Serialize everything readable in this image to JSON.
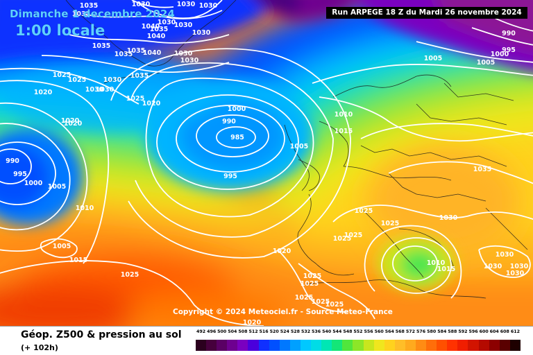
{
  "header": {
    "date_label": "Dimanche 1 decembre 2024",
    "time_label": "1:00 locale",
    "run_label": "Run ARPEGE 18 Z du Mardi 26 novembre 2024"
  },
  "map": {
    "copyright": "Copyright © 2024 Meteociel.fr - Source Meteo-France",
    "isobar_labels": [
      {
        "text": "1035",
        "pos": [
          128,
          3
        ]
      },
      {
        "text": "1030",
        "pos": [
          203,
          1
        ]
      },
      {
        "text": "1030",
        "pos": [
          268,
          1
        ]
      },
      {
        "text": "1030",
        "pos": [
          300,
          3
        ]
      },
      {
        "text": "1035",
        "pos": [
          117,
          15
        ]
      },
      {
        "text": "1030",
        "pos": [
          240,
          27
        ]
      },
      {
        "text": "1030",
        "pos": [
          264,
          31
        ]
      },
      {
        "text": "1040",
        "pos": [
          217,
          33
        ]
      },
      {
        "text": "1035",
        "pos": [
          229,
          37
        ]
      },
      {
        "text": "1030",
        "pos": [
          290,
          42
        ]
      },
      {
        "text": "1040",
        "pos": [
          225,
          47
        ]
      },
      {
        "text": "1035",
        "pos": [
          146,
          61
        ]
      },
      {
        "text": "1035",
        "pos": [
          196,
          68
        ]
      },
      {
        "text": "1040",
        "pos": [
          219,
          71
        ]
      },
      {
        "text": "1035",
        "pos": [
          178,
          73
        ]
      },
      {
        "text": "1030",
        "pos": [
          264,
          72
        ]
      },
      {
        "text": "1030",
        "pos": [
          273,
          82
        ]
      },
      {
        "text": "1025",
        "pos": [
          89,
          103
        ]
      },
      {
        "text": "1025",
        "pos": [
          111,
          110
        ]
      },
      {
        "text": "1030",
        "pos": [
          162,
          110
        ]
      },
      {
        "text": "1035",
        "pos": [
          201,
          104
        ]
      },
      {
        "text": "1030",
        "pos": [
          136,
          124
        ]
      },
      {
        "text": "1030",
        "pos": [
          151,
          124
        ]
      },
      {
        "text": "1020",
        "pos": [
          62,
          128
        ]
      },
      {
        "text": "1025",
        "pos": [
          195,
          137
        ]
      },
      {
        "text": "1020",
        "pos": [
          218,
          144
        ]
      },
      {
        "text": "1000",
        "pos": [
          341,
          152
        ]
      },
      {
        "text": "990",
        "pos": [
          330,
          170
        ]
      },
      {
        "text": "985",
        "pos": [
          342,
          193
        ]
      },
      {
        "text": "1005",
        "pos": [
          431,
          206
        ]
      },
      {
        "text": "1020",
        "pos": [
          101,
          169
        ]
      },
      {
        "text": "1020",
        "pos": [
          105,
          173
        ]
      },
      {
        "text": "1010",
        "pos": [
          495,
          160
        ]
      },
      {
        "text": "1015",
        "pos": [
          495,
          184
        ]
      },
      {
        "text": "990",
        "pos": [
          18,
          227
        ]
      },
      {
        "text": "995",
        "pos": [
          29,
          246
        ]
      },
      {
        "text": "1000",
        "pos": [
          48,
          259
        ]
      },
      {
        "text": "1005",
        "pos": [
          82,
          264
        ]
      },
      {
        "text": "995",
        "pos": [
          332,
          249
        ]
      },
      {
        "text": "1010",
        "pos": [
          122,
          295
        ]
      },
      {
        "text": "1025",
        "pos": [
          524,
          299
        ]
      },
      {
        "text": "1025",
        "pos": [
          562,
          317
        ]
      },
      {
        "text": "1030",
        "pos": [
          646,
          309
        ]
      },
      {
        "text": "1035",
        "pos": [
          695,
          239
        ]
      },
      {
        "text": "1025",
        "pos": [
          509,
          334
        ]
      },
      {
        "text": "1025",
        "pos": [
          493,
          339
        ]
      },
      {
        "text": "1005",
        "pos": [
          89,
          350
        ]
      },
      {
        "text": "1020",
        "pos": [
          406,
          357
        ]
      },
      {
        "text": "1015",
        "pos": [
          113,
          370
        ]
      },
      {
        "text": "1025",
        "pos": [
          187,
          391
        ]
      },
      {
        "text": "1030",
        "pos": [
          727,
          362
        ]
      },
      {
        "text": "1030",
        "pos": [
          710,
          379
        ]
      },
      {
        "text": "1030",
        "pos": [
          748,
          379
        ]
      },
      {
        "text": "1030",
        "pos": [
          742,
          389
        ]
      },
      {
        "text": "1010",
        "pos": [
          628,
          374
        ]
      },
      {
        "text": "1015",
        "pos": [
          643,
          383
        ]
      },
      {
        "text": "1025",
        "pos": [
          450,
          393
        ]
      },
      {
        "text": "1025",
        "pos": [
          446,
          404
        ]
      },
      {
        "text": "1025",
        "pos": [
          438,
          424
        ]
      },
      {
        "text": "1025",
        "pos": [
          462,
          430
        ]
      },
      {
        "text": "1025",
        "pos": [
          482,
          434
        ]
      },
      {
        "text": "1020",
        "pos": [
          363,
          460
        ]
      },
      {
        "text": "1005",
        "pos": [
          624,
          79
        ]
      },
      {
        "text": "1005",
        "pos": [
          700,
          85
        ]
      },
      {
        "text": "1000",
        "pos": [
          720,
          73
        ]
      },
      {
        "text": "995",
        "pos": [
          733,
          67
        ]
      },
      {
        "text": "990",
        "pos": [
          733,
          43
        ]
      }
    ]
  },
  "footer": {
    "title": "Géop. Z500 & pression au sol",
    "subtitle": "(+ 102h)",
    "legend": {
      "labels": [
        "492",
        "496",
        "500",
        "504",
        "508",
        "512",
        "516",
        "520",
        "524",
        "528",
        "532",
        "536",
        "540",
        "544",
        "548",
        "552",
        "556",
        "560",
        "564",
        "568",
        "572",
        "576",
        "580",
        "584",
        "588",
        "592",
        "596",
        "600",
        "604",
        "608",
        "612"
      ],
      "colors": [
        "#2b001e",
        "#46003c",
        "#5a0064",
        "#6e0090",
        "#7a00c0",
        "#4a00dc",
        "#1030ff",
        "#0050ff",
        "#0078ff",
        "#00a0ff",
        "#00c8ff",
        "#00dce6",
        "#00e6b4",
        "#14e678",
        "#50e63c",
        "#8ce628",
        "#c8e61e",
        "#f0e61e",
        "#ffd21e",
        "#ffbe28",
        "#ffaa1e",
        "#ff8c14",
        "#ff6e0a",
        "#ff5000",
        "#ff3200",
        "#f01e00",
        "#d21400",
        "#b40a00",
        "#8c0000",
        "#5a0000",
        "#1e0000"
      ]
    }
  }
}
